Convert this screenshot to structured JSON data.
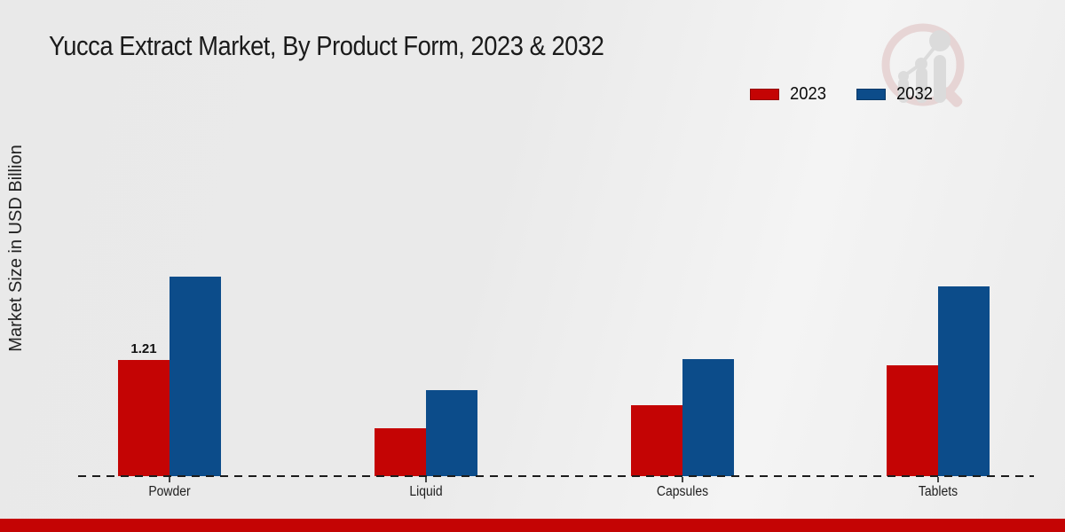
{
  "page": {
    "bottom_strip_color": "#c40404"
  },
  "chart_data": {
    "type": "bar",
    "title": "Yucca Extract Market, By Product Form, 2023 & 2032",
    "ylabel": "Market Size in USD Billion",
    "xlabel": "",
    "categories": [
      "Powder",
      "Liquid",
      "Capsules",
      "Tablets"
    ],
    "series": [
      {
        "name": "2023",
        "color": "#c40404",
        "values": [
          1.21,
          0.5,
          0.74,
          1.15
        ],
        "labels": [
          "1.21",
          "",
          "",
          ""
        ]
      },
      {
        "name": "2032",
        "color": "#0c4c8a",
        "values": [
          2.08,
          0.9,
          1.22,
          1.98
        ],
        "labels": [
          "",
          "",
          "",
          ""
        ]
      }
    ],
    "ylim": [
      0,
      2.6
    ],
    "grid": false,
    "legend_position": "top-right",
    "baseline_style": "dashed",
    "annotations": [
      "1.21"
    ]
  },
  "branding": {
    "watermark_icon": "magnifier-growth-chart-logo"
  }
}
